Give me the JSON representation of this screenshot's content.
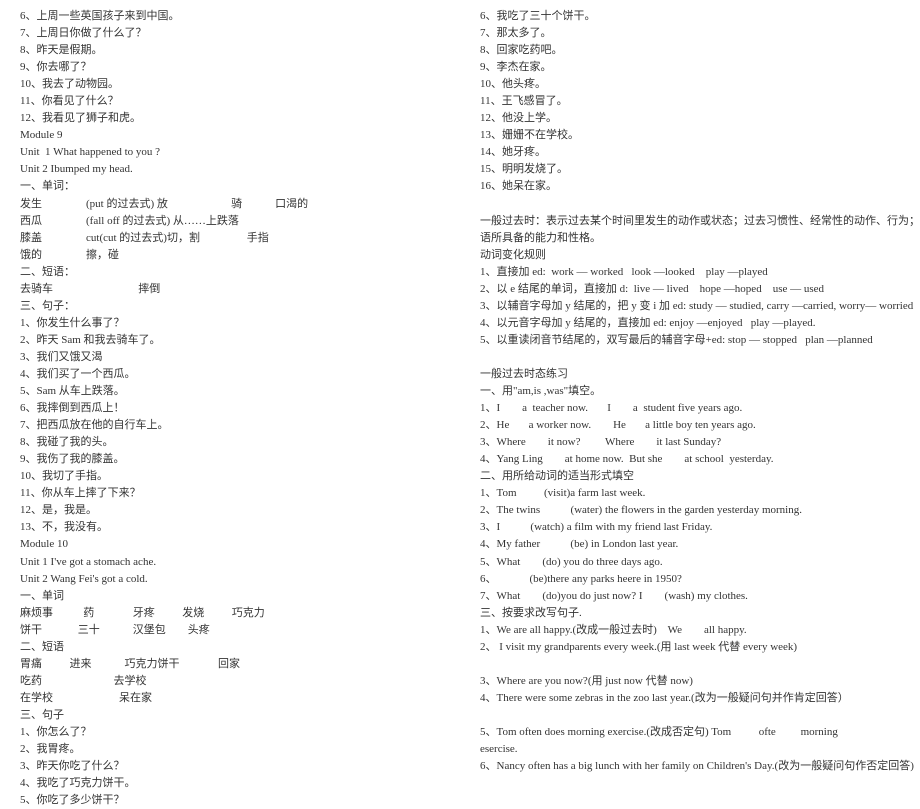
{
  "left": {
    "lines": [
      "6、上周一些英国孩子来到中国。",
      "7、上周日你做了什么了？",
      "8、昨天是假期。",
      "9、你去哪了？",
      "10、我去了动物园。",
      "11、你看见了什么？",
      "12、我看见了狮子和虎。",
      "Module 9",
      "Unit  1 What happened to you ?",
      "Unit 2 Ibumped my head.",
      "一、单词：",
      "发生                (put 的过去式) 放                       骑            口渴的",
      "西瓜                (fall off 的过去式) 从……上跌落",
      "膝盖                cut(cut 的过去式)切，割                 手指",
      "饿的                擦，碰",
      "二、短语：",
      "去骑车                               摔倒",
      "三、句子：",
      "1、你发生什么事了？",
      "2、昨天 Sam 和我去骑车了。",
      "3、我们又饿又渴",
      "4、我们买了一个西瓜。",
      "5、Sam 从车上跌落。",
      "6、我摔倒到西瓜上！",
      "7、把西瓜放在他的自行车上。",
      "8、我碰了我的头。",
      "9、我伤了我的膝盖。",
      "10、我切了手指。",
      "11、你从车上摔了下来？",
      "12、是，我是。",
      "13、不，我没有。",
      "Module 10",
      "Unit 1 I've got a stomach ache.",
      "Unit 2 Wang Fei's got a cold.",
      "一、单词",
      "麻烦事           药              牙疼          发烧          巧克力",
      "饼干             三十            汉堡包        头疼",
      "二、短语",
      "胃痛          进来            巧克力饼干              回家",
      "吃药                          去学校",
      "在学校                        呆在家",
      "三、句子",
      "1、你怎么了？",
      "2、我胃疼。",
      "3、昨天你吃了什么？",
      "4、我吃了巧克力饼干。",
      "5、你吃了多少饼干？"
    ]
  },
  "right": {
    "lines": [
      "6、我吃了三十个饼干。",
      "7、那太多了。",
      "8、回家吃药吧。",
      "9、李杰在家。",
      "10、他头疼。",
      "11、王飞感冒了。",
      "12、他没上学。",
      "13、姗姗不在学校。",
      "14、她牙疼。",
      "15、明明发烧了。",
      "16、她呆在家。",
      "",
      "一般过去时：表示过去某个时间里发生的动作或状态；过去习惯性、经常性的动作、行为；过去主",
      "语所具备的能力和性格。",
      "动词变化规则",
      "1、直接加 ed:  work — worked   look —looked    play —played",
      "2、以 e 结尾的单词，直接加 d:  live — lived    hope —hoped    use — used",
      "3、以辅音字母加 y 结尾的，把 y 变 i 加 ed: study — studied, carry —carried, worry— worried",
      "4、以元音字母加 y 结尾的，直接加 ed: enjoy —enjoyed   play —played.",
      "5、以重读闭音节结尾的，双写最后的辅音字母+ed: stop — stopped   plan —planned",
      "",
      "一般过去时态练习",
      "一、用\"am,is ,was\"填空。",
      "1、I        a  teacher now.       I        a  student five years ago.",
      "2、He       a worker now.        He       a little boy ten years ago.",
      "3、Where        it now?         Where        it last Sunday?",
      "4、Yang Ling        at home now.  But she        at school  yesterday.",
      "二、用所给动词的适当形式填空",
      "1、Tom          (visit)a farm last week.",
      "2、The twins           (water) the flowers in the garden yesterday morning.",
      "3、I           (watch) a film with my friend last Friday.",
      "4、My father           (be) in London last year.",
      "5、What        (do) you do three days ago.",
      "6、            (be)there any parks heere in 1950?",
      "7、What        (do)you do just now? I        (wash) my clothes.",
      "三、按要求改写句子.",
      "1、We are all happy.(改成一般过去时)    We        all happy.",
      "2、 I visit my grandparents every week.(用 last week 代替 every week)",
      "",
      "3、Where are you now?(用 just now 代替 now)",
      "4、There were some zebras in the zoo last year.(改为一般疑问句并作肯定回答）",
      "",
      "5、Tom often does morning exercise.(改成否定句) Tom          ofte         morning",
      "esercise.",
      "6、Nancy often has a big lunch with her family on Children's Day.(改为一般疑问句作否定回答)"
    ]
  }
}
